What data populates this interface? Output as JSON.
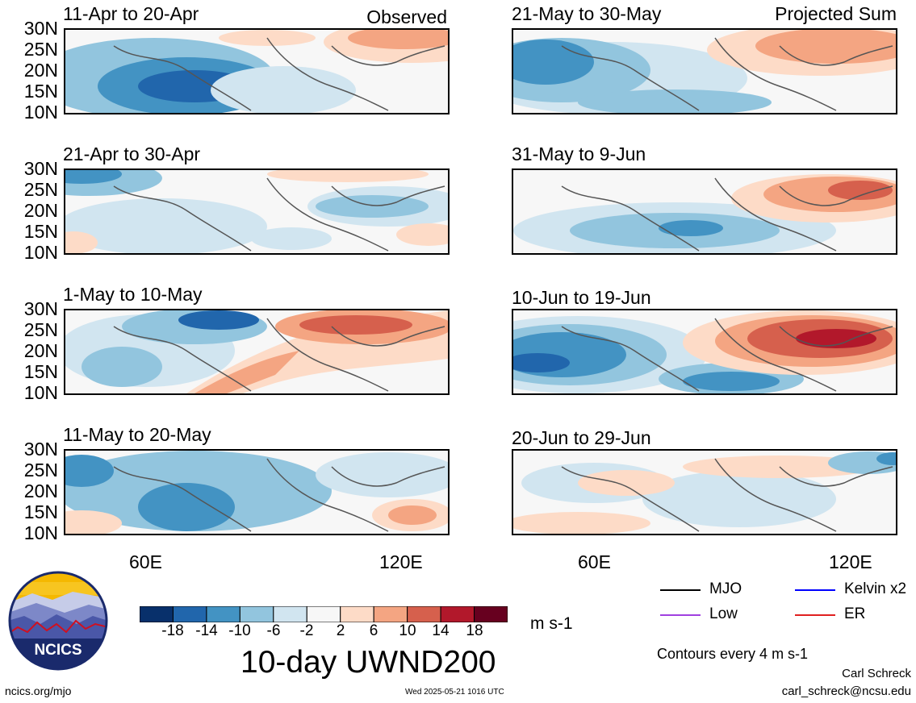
{
  "figure": {
    "title": "10-day UWND200",
    "units": "m s-1",
    "contour_note": "Contours every 4 m s-1",
    "author": "Carl Schreck",
    "email": "carl_schreck@ncsu.edu",
    "site": "ncics.org/mjo",
    "timestamp": "Wed 2025-05-21 1016 UTC",
    "logo_text": "NCICS"
  },
  "columns": {
    "left_tag": "Observed",
    "right_tag": "Projected Sum"
  },
  "panels": [
    {
      "title": "11-Apr to 20-Apr"
    },
    {
      "title": "21-Apr to 30-Apr"
    },
    {
      "title": "1-May to 10-May"
    },
    {
      "title": "11-May to 20-May"
    },
    {
      "title": "21-May to 30-May"
    },
    {
      "title": "31-May to 9-Jun"
    },
    {
      "title": "10-Jun to 19-Jun"
    },
    {
      "title": "20-Jun to 29-Jun"
    }
  ],
  "axes": {
    "lat_ticks": [
      "30N",
      "25N",
      "20N",
      "15N",
      "10N"
    ],
    "lon_ticks": [
      "60E",
      "120E"
    ]
  },
  "colorbar": {
    "tick_labels": [
      "-18",
      "-14",
      "-10",
      "-6",
      "-2",
      "2",
      "6",
      "10",
      "14",
      "18"
    ],
    "colors": [
      "#08306b",
      "#2166ac",
      "#4393c3",
      "#92c5de",
      "#d1e5f0",
      "#f7f7f7",
      "#fddbc7",
      "#f4a582",
      "#d6604d",
      "#b2182b",
      "#67001f"
    ]
  },
  "legend": [
    {
      "label": "MJO",
      "color": "#000000"
    },
    {
      "label": "Kelvin x2",
      "color": "#0000ff"
    },
    {
      "label": "Low",
      "color": "#a040e0"
    },
    {
      "label": "ER",
      "color": "#e02020"
    }
  ]
}
